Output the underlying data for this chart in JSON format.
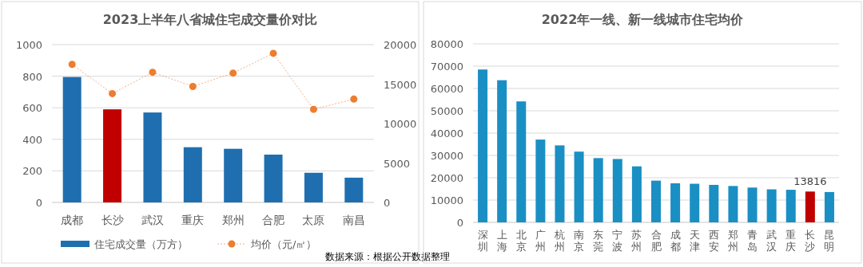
{
  "chart_data": [
    {
      "type": "bar",
      "title": "2023上半年八省城住宅成交量价对比",
      "categories": [
        "成都",
        "长沙",
        "武汉",
        "重庆",
        "郑州",
        "合肥",
        "太原",
        "南昌"
      ],
      "series": [
        {
          "name": "住宅成交量（万方）",
          "type": "bar",
          "color": "#1f6fb0",
          "colors": [
            "#1f6fb0",
            "#c00000",
            "#1f6fb0",
            "#1f6fb0",
            "#1f6fb0",
            "#1f6fb0",
            "#1f6fb0",
            "#1f6fb0"
          ],
          "values": [
            795,
            590,
            570,
            350,
            340,
            303,
            188,
            157
          ]
        },
        {
          "name": "均价（元/㎡）",
          "type": "line",
          "axis": "y2",
          "color": "#ed7d31",
          "marker": "circle",
          "line_style": "dotted",
          "values": [
            17500,
            13800,
            16500,
            14700,
            16400,
            18900,
            11800,
            13100
          ]
        }
      ],
      "ylim": [
        0,
        1000
      ],
      "yticks": [
        0,
        200,
        400,
        600,
        800,
        1000
      ],
      "y2lim": [
        0,
        20000
      ],
      "y2ticks": [
        0,
        5000,
        10000,
        15000,
        20000
      ],
      "grid": "y",
      "legend": "bottom",
      "annotations": [
        "数据来源：根据公开数据整理"
      ]
    },
    {
      "type": "bar",
      "title": "2022年一线、新一线城市住宅均价",
      "categories": [
        "深圳",
        "上海",
        "北京",
        "广州",
        "杭州",
        "南京",
        "东莞",
        "宁波",
        "苏州",
        "合肥",
        "成都",
        "天津",
        "西安",
        "郑州",
        "青岛",
        "武汉",
        "重庆",
        "长沙",
        "昆明"
      ],
      "values": [
        68500,
        63700,
        54200,
        37100,
        34500,
        31700,
        28800,
        28400,
        25100,
        18700,
        17500,
        17300,
        16800,
        16300,
        15600,
        14800,
        14600,
        13816,
        13600
      ],
      "colors": [
        "#1a8fc4",
        "#1a8fc4",
        "#1a8fc4",
        "#1a8fc4",
        "#1a8fc4",
        "#1a8fc4",
        "#1a8fc4",
        "#1a8fc4",
        "#1a8fc4",
        "#1a8fc4",
        "#1a8fc4",
        "#1a8fc4",
        "#1a8fc4",
        "#1a8fc4",
        "#1a8fc4",
        "#1a8fc4",
        "#1a8fc4",
        "#c00000",
        "#1a8fc4"
      ],
      "value_labels": [
        null,
        null,
        null,
        null,
        null,
        null,
        null,
        null,
        null,
        null,
        null,
        null,
        null,
        null,
        null,
        null,
        null,
        "13816",
        null
      ],
      "ylim": [
        0,
        80000
      ],
      "yticks": [
        0,
        10000,
        20000,
        30000,
        40000,
        50000,
        60000,
        70000,
        80000
      ],
      "grid": "y",
      "legend": false
    }
  ]
}
